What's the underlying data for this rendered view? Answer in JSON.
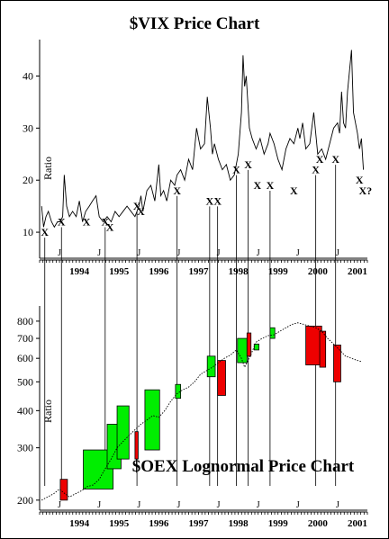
{
  "chart_data": [
    {
      "type": "line",
      "title": "$VIX Price Chart",
      "ylabel": "Ratio",
      "ylim": [
        5,
        47
      ],
      "y_ticks": [
        10,
        20,
        30,
        40
      ],
      "x_range": [
        1993.5,
        2001.75
      ],
      "year_labels": [
        "1994",
        "1995",
        "1996",
        "1997",
        "1998",
        "1999",
        "2000",
        "2001"
      ],
      "january_marker": "J",
      "series": [
        {
          "x": [
            1993.55,
            1993.6,
            1993.66,
            1993.72,
            1993.8,
            1993.87,
            1993.95,
            1994.02,
            1994.08,
            1994.12,
            1994.18,
            1994.25,
            1994.33,
            1994.42,
            1994.5,
            1994.58,
            1994.66,
            1994.75,
            1994.83,
            1994.92,
            1995.0,
            1995.1,
            1995.2,
            1995.3,
            1995.4,
            1995.5,
            1995.6,
            1995.7,
            1995.8,
            1995.9,
            1996.0,
            1996.05,
            1996.1,
            1996.15,
            1996.2,
            1996.3,
            1996.4,
            1996.5,
            1996.55,
            1996.62,
            1996.7,
            1996.8,
            1996.9,
            1996.96,
            1997.05,
            1997.15,
            1997.25,
            1997.35,
            1997.45,
            1997.55,
            1997.65,
            1997.72,
            1997.8,
            1997.85,
            1997.9,
            1998.0,
            1998.1,
            1998.2,
            1998.3,
            1998.4,
            1998.5,
            1998.58,
            1998.62,
            1998.66,
            1998.7,
            1998.78,
            1998.85,
            1998.95,
            1999.05,
            1999.15,
            1999.25,
            1999.3,
            1999.4,
            1999.5,
            1999.6,
            1999.7,
            1999.8,
            1999.9,
            2000.0,
            2000.05,
            2000.12,
            2000.2,
            2000.3,
            2000.4,
            2000.5,
            2000.6,
            2000.7,
            2000.8,
            2000.9,
            2001.0,
            2001.05,
            2001.1,
            2001.15,
            2001.2,
            2001.25,
            2001.3,
            2001.35,
            2001.4,
            2001.45,
            2001.5,
            2001.55,
            2001.6,
            2001.65
          ],
          "y": [
            15,
            11,
            13,
            14,
            12,
            11,
            12,
            12,
            13,
            21,
            15,
            13,
            14,
            13,
            16,
            12,
            14,
            15,
            16,
            17,
            13,
            12,
            13,
            12,
            14,
            13,
            14,
            15,
            14,
            13,
            15,
            17,
            14,
            16,
            18,
            19,
            16,
            23,
            17,
            18,
            16,
            20,
            19,
            21,
            22,
            20,
            24,
            22,
            30,
            26,
            27,
            36,
            30,
            25,
            27,
            24,
            22,
            23,
            20,
            21,
            25,
            33,
            44,
            38,
            40,
            30,
            28,
            26,
            28,
            25,
            27,
            29,
            27,
            24,
            22,
            26,
            28,
            27,
            30,
            28,
            31,
            26,
            27,
            33,
            25,
            26,
            24,
            27,
            30,
            31,
            29,
            37,
            31,
            30,
            37,
            41,
            45,
            33,
            31,
            29,
            26,
            28,
            22
          ]
        }
      ],
      "annotations": [
        "X",
        "X",
        "X",
        "X",
        "X",
        "X",
        "X",
        "X",
        "X",
        "X",
        "X",
        "X",
        "X",
        "X",
        "X",
        "X",
        "X",
        "X",
        "X",
        "X?"
      ]
    },
    {
      "type": "line",
      "title": "$OEX Lognormal Price Chart",
      "ylabel": "Ratio",
      "scale": "log",
      "ylim": [
        185,
        900
      ],
      "y_ticks": [
        200,
        300,
        400,
        500,
        600,
        700,
        800
      ],
      "x_range": [
        1993.5,
        2001.75
      ],
      "year_labels": [
        "1994",
        "1995",
        "1996",
        "1997",
        "1998",
        "1999",
        "2000",
        "2001"
      ],
      "january_marker": "J",
      "series": [
        {
          "x": [
            1993.55,
            1993.7,
            1993.85,
            1994.0,
            1994.1,
            1994.25,
            1994.4,
            1994.55,
            1994.7,
            1994.85,
            1995.0,
            1995.15,
            1995.3,
            1995.45,
            1995.6,
            1995.75,
            1995.9,
            1996.05,
            1996.2,
            1996.35,
            1996.5,
            1996.65,
            1996.8,
            1996.95,
            1997.1,
            1997.25,
            1997.4,
            1997.55,
            1997.7,
            1997.85,
            1998.0,
            1998.15,
            1998.3,
            1998.45,
            1998.58,
            1998.66,
            1998.8,
            1998.95,
            1999.1,
            1999.25,
            1999.4,
            1999.55,
            1999.7,
            1999.85,
            2000.0,
            2000.15,
            2000.3,
            2000.45,
            2000.6,
            2000.75,
            2000.9,
            2001.05,
            2001.2,
            2001.35,
            2001.5,
            2001.6
          ],
          "y": [
            200,
            205,
            210,
            218,
            212,
            205,
            210,
            215,
            222,
            225,
            235,
            255,
            275,
            300,
            315,
            330,
            345,
            360,
            372,
            385,
            380,
            400,
            430,
            455,
            470,
            480,
            500,
            530,
            545,
            560,
            580,
            600,
            615,
            640,
            600,
            560,
            610,
            680,
            700,
            715,
            720,
            740,
            760,
            780,
            790,
            780,
            770,
            760,
            740,
            700,
            670,
            640,
            610,
            600,
            590,
            585
          ]
        }
      ],
      "boxes": [
        {
          "color": "red",
          "x": [
            1994.02,
            1994.2
          ],
          "y": [
            200,
            235
          ]
        },
        {
          "color": "green",
          "x": [
            1994.6,
            1995.35
          ],
          "y": [
            218,
            295
          ]
        },
        {
          "color": "green",
          "x": [
            1995.2,
            1995.55
          ],
          "y": [
            255,
            360
          ]
        },
        {
          "color": "green",
          "x": [
            1995.45,
            1995.75
          ],
          "y": [
            275,
            415
          ]
        },
        {
          "color": "red",
          "x": [
            1995.9,
            1995.98
          ],
          "y": [
            275,
            340
          ]
        },
        {
          "color": "green",
          "x": [
            1996.15,
            1996.52
          ],
          "y": [
            295,
            470
          ]
        },
        {
          "color": "green",
          "x": [
            1996.92,
            1997.05
          ],
          "y": [
            440,
            490
          ]
        },
        {
          "color": "green",
          "x": [
            1997.72,
            1997.92
          ],
          "y": [
            520,
            610
          ]
        },
        {
          "color": "red",
          "x": [
            1997.98,
            1998.18
          ],
          "y": [
            450,
            590
          ]
        },
        {
          "color": "green",
          "x": [
            1998.48,
            1998.72
          ],
          "y": [
            580,
            700
          ]
        },
        {
          "color": "red",
          "x": [
            1998.72,
            1998.82
          ],
          "y": [
            610,
            730
          ]
        },
        {
          "color": "green",
          "x": [
            1998.9,
            1999.02
          ],
          "y": [
            640,
            670
          ]
        },
        {
          "color": "green",
          "x": [
            1999.3,
            1999.42
          ],
          "y": [
            700,
            760
          ]
        },
        {
          "color": "red",
          "x": [
            2000.2,
            2000.6
          ],
          "y": [
            570,
            770
          ]
        },
        {
          "color": "red",
          "x": [
            2000.55,
            2000.7
          ],
          "y": [
            560,
            740
          ]
        },
        {
          "color": "red",
          "x": [
            2000.9,
            2001.08
          ],
          "y": [
            500,
            665
          ]
        }
      ]
    }
  ],
  "colors": {
    "red_box": "#ee0000",
    "green_box": "#00ee00",
    "line": "#000000",
    "background": "#ffffff"
  }
}
